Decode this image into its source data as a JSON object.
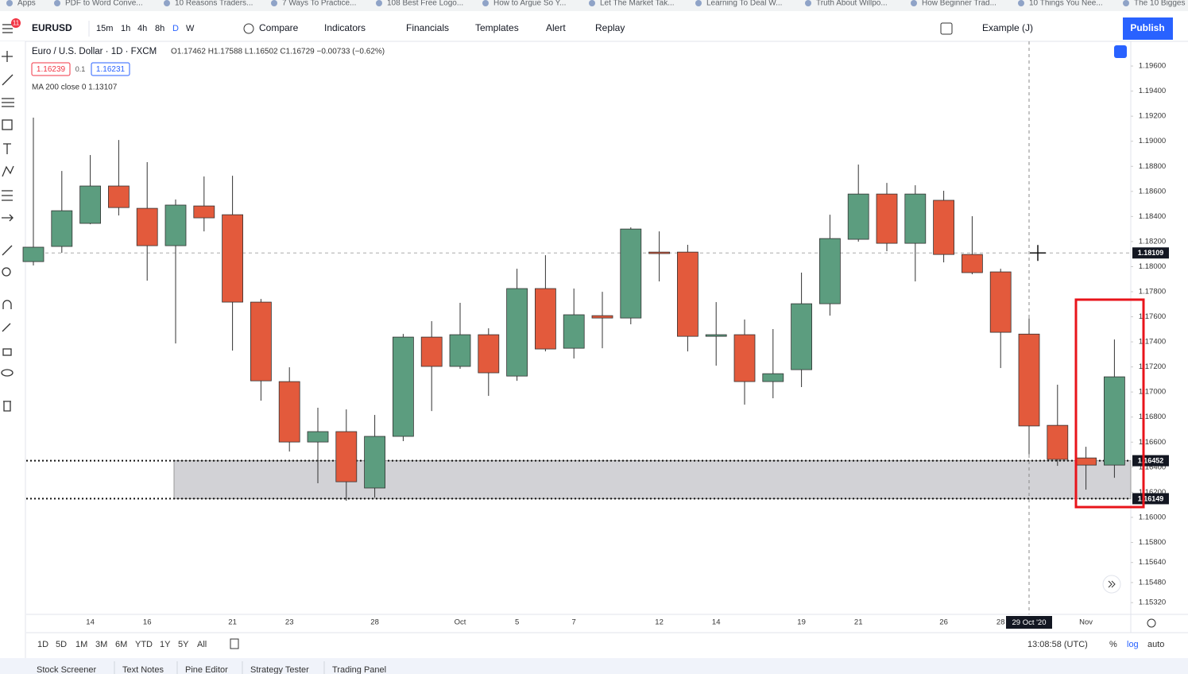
{
  "bookmarks": [
    "Apps",
    "PDF to Word Conve...",
    "10 Reasons Traders...",
    "7 Ways To Practice...",
    "108 Best Free Logo...",
    "How to Argue So Y...",
    "Let The Market Tak...",
    "Learning To Deal W...",
    "Truth About Willpo...",
    "How Beginner Trad...",
    "10 Things You Nee...",
    "The 10 Bigges"
  ],
  "toolbar": {
    "badge": "11",
    "symbol": "EURUSD",
    "intervals": [
      "15m",
      "1h",
      "4h",
      "8h",
      "D",
      "W"
    ],
    "compare": "Compare",
    "indicators": "Indicators",
    "financials": "Financials",
    "templates": "Templates",
    "alert": "Alert",
    "replay": "Replay",
    "layout": "Example (J)",
    "publish": "Publish"
  },
  "legend": {
    "title": "Euro / U.S. Dollar · 1D · FXCM",
    "ohlc": "O1.17462 H1.17588 L1.16502 C1.16729 −0.00733 (−0.62%)",
    "sell": "1.16239",
    "lot": "0.1",
    "buy": "1.16231",
    "ma": "MA 200 close 0  1.13107"
  },
  "chart_data": {
    "type": "candlestick",
    "categories": [
      null,
      null,
      "14",
      null,
      "16",
      null,
      null,
      "21",
      null,
      "23",
      null,
      null,
      "28",
      null,
      null,
      "Oct",
      null,
      "5",
      null,
      "7",
      null,
      null,
      "12",
      null,
      "14",
      null,
      null,
      "19",
      null,
      "21",
      null,
      null,
      "26",
      null,
      "28",
      null,
      null,
      "Nov",
      null
    ],
    "open": [
      1.1804,
      1.18161,
      1.18345,
      1.18643,
      1.18465,
      1.18167,
      1.18484,
      1.18414,
      1.17717,
      1.17083,
      1.16601,
      1.16684,
      1.16234,
      1.16646,
      1.17438,
      1.17204,
      1.17457,
      1.17127,
      1.17825,
      1.17349,
      1.17609,
      1.1759,
      1.18116,
      1.18116,
      1.17444,
      1.17457,
      1.17083,
      1.17178,
      1.17704,
      1.18218,
      1.18579,
      1.18186,
      1.18529,
      1.18097,
      1.17958,
      1.17462,
      1.16734,
      1.16474,
      1.16417
    ],
    "high": [
      1.19188,
      1.18763,
      1.1889,
      1.1901,
      1.18833,
      1.18535,
      1.18719,
      1.18725,
      1.17742,
      1.17197,
      1.16874,
      1.16861,
      1.16817,
      1.17463,
      1.17565,
      1.17711,
      1.17508,
      1.17983,
      1.18091,
      1.17825,
      1.17799,
      1.18313,
      1.18281,
      1.18174,
      1.17717,
      1.17578,
      1.17502,
      1.17952,
      1.18414,
      1.18814,
      1.18668,
      1.18649,
      1.18605,
      1.18402,
      1.17983,
      1.17588,
      1.17058,
      1.16563,
      1.17419
    ],
    "low": [
      1.18009,
      1.1811,
      1.18338,
      1.18408,
      1.17888,
      1.17387,
      1.18281,
      1.1733,
      1.16931,
      1.16525,
      1.16272,
      1.16132,
      1.16157,
      1.16608,
      1.16848,
      1.17185,
      1.16969,
      1.17089,
      1.17324,
      1.17267,
      1.17349,
      1.1754,
      1.17882,
      1.17324,
      1.1721,
      1.16899,
      1.1695,
      1.17039,
      1.17609,
      1.18199,
      1.18123,
      1.17882,
      1.18034,
      1.17939,
      1.17191,
      1.16502,
      1.16411,
      1.16221,
      1.16316
    ],
    "close": [
      1.18155,
      1.18446,
      1.18643,
      1.18471,
      1.18167,
      1.18491,
      1.18389,
      1.17717,
      1.17089,
      1.16601,
      1.16684,
      1.16284,
      1.16646,
      1.17438,
      1.17204,
      1.17457,
      1.17153,
      1.17825,
      1.17343,
      1.17616,
      1.1759,
      1.183,
      1.18104,
      1.17444,
      1.17457,
      1.17083,
      1.17146,
      1.17704,
      1.18224,
      1.18579,
      1.18186,
      1.18579,
      1.18097,
      1.17952,
      1.17476,
      1.16729,
      1.16462,
      1.16417,
      1.17121
    ],
    "up_color": "#5c9d7f",
    "down_color": "#e35a3c",
    "ylim": [
      1.15226,
      1.19797
    ],
    "yticks": [
      {
        "value": 1.196,
        "label": "1.19600"
      },
      {
        "value": 1.194,
        "label": "1.19400"
      },
      {
        "value": 1.192,
        "label": "1.19200"
      },
      {
        "value": 1.19,
        "label": "1.19000"
      },
      {
        "value": 1.188,
        "label": "1.18800"
      },
      {
        "value": 1.186,
        "label": "1.18600"
      },
      {
        "value": 1.184,
        "label": "1.18400"
      },
      {
        "value": 1.182,
        "label": "1.18200"
      },
      {
        "value": 1.18,
        "label": "1.18000"
      },
      {
        "value": 1.178,
        "label": "1.17800"
      },
      {
        "value": 1.176,
        "label": "1.17600"
      },
      {
        "value": 1.174,
        "label": "1.17400"
      },
      {
        "value": 1.172,
        "label": "1.17200"
      },
      {
        "value": 1.17,
        "label": "1.17000"
      },
      {
        "value": 1.168,
        "label": "1.16800"
      },
      {
        "value": 1.166,
        "label": "1.16600"
      },
      {
        "value": 1.164,
        "label": "1.16400"
      },
      {
        "value": 1.162,
        "label": "1.16200"
      },
      {
        "value": 1.16,
        "label": "1.16000"
      },
      {
        "value": 1.158,
        "label": "1.15800"
      },
      {
        "value": 1.1564,
        "label": "1.15640"
      },
      {
        "value": 1.1548,
        "label": "1.15480"
      },
      {
        "value": 1.1532,
        "label": "1.15320"
      }
    ],
    "grid": false,
    "zone": {
      "top": 1.16452,
      "bottom": 1.16149,
      "color": "#d2d2d6"
    },
    "crosshair": {
      "price": 1.18109,
      "x_label": "29 Oct '20"
    }
  },
  "timeframes": [
    "1D",
    "5D",
    "1M",
    "3M",
    "6M",
    "YTD",
    "1Y",
    "5Y",
    "All"
  ],
  "clock": "13:08:58 (UTC)",
  "scale_options": [
    "%",
    "log",
    "auto"
  ],
  "tabs": [
    "Stock Screener",
    "Text Notes",
    "Pine Editor",
    "Strategy Tester",
    "Trading Panel"
  ]
}
